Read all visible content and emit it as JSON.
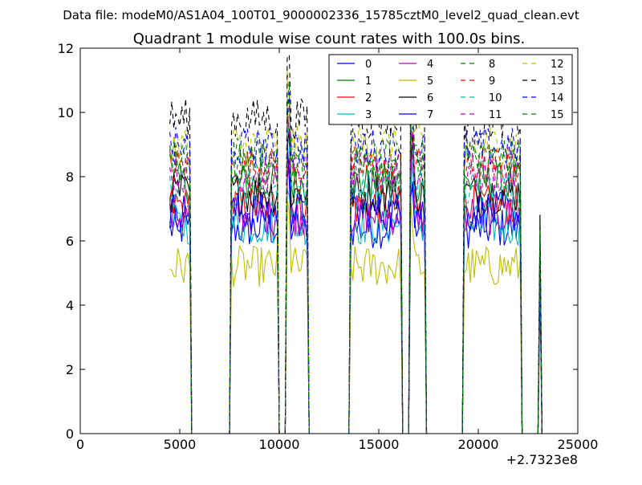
{
  "header": {
    "datafile": "Data file: modeM0/AS1A04_100T01_9000002336_15785cztM0_level2_quad_clean.evt"
  },
  "chart_data": {
    "type": "line",
    "title": "Quadrant 1 module wise count rates with 100.0s bins.",
    "xlabel": "",
    "ylabel": "",
    "x_offset_label": "+2.7323e8",
    "xlim": [
      0,
      25000
    ],
    "ylim": [
      0,
      12
    ],
    "xticks": [
      0,
      5000,
      10000,
      15000,
      20000,
      25000
    ],
    "yticks": [
      0,
      2,
      4,
      6,
      8,
      10,
      12
    ],
    "grid": false,
    "legend_position": "top-right",
    "bin_seconds": 100.0,
    "active_intervals": [
      [
        4500,
        5500
      ],
      [
        7600,
        9900
      ],
      [
        10400,
        11400
      ],
      [
        13600,
        16100
      ],
      [
        16600,
        17300
      ],
      [
        19300,
        22100
      ],
      [
        23050,
        23150
      ]
    ],
    "series": [
      {
        "name": "0",
        "color": "#0000ff",
        "dash": "solid",
        "level": 6.4
      },
      {
        "name": "1",
        "color": "#008000",
        "dash": "solid",
        "level": 7.8
      },
      {
        "name": "2",
        "color": "#ff0000",
        "dash": "solid",
        "level": 7.1
      },
      {
        "name": "3",
        "color": "#00bfbf",
        "dash": "solid",
        "level": 6.5
      },
      {
        "name": "4",
        "color": "#bf00bf",
        "dash": "solid",
        "level": 6.8
      },
      {
        "name": "5",
        "color": "#bfbf00",
        "dash": "solid",
        "level": 5.2
      },
      {
        "name": "6",
        "color": "#000000",
        "dash": "solid",
        "level": 7.5
      },
      {
        "name": "7",
        "color": "#0000ff",
        "dash": "solid",
        "level": 6.9
      },
      {
        "name": "8",
        "color": "#008000",
        "dash": "dashed",
        "level": 8.6
      },
      {
        "name": "9",
        "color": "#ff0000",
        "dash": "dashed",
        "level": 8.3
      },
      {
        "name": "10",
        "color": "#00bfbf",
        "dash": "dashed",
        "level": 7.6
      },
      {
        "name": "11",
        "color": "#bf00bf",
        "dash": "dashed",
        "level": 8.1
      },
      {
        "name": "12",
        "color": "#bfbf00",
        "dash": "dashed",
        "level": 9.0
      },
      {
        "name": "13",
        "color": "#000000",
        "dash": "dashed",
        "level": 9.8
      },
      {
        "name": "14",
        "color": "#0000ff",
        "dash": "dashed",
        "level": 8.9
      },
      {
        "name": "15",
        "color": "#008000",
        "dash": "dashed",
        "level": 8.4
      }
    ]
  }
}
